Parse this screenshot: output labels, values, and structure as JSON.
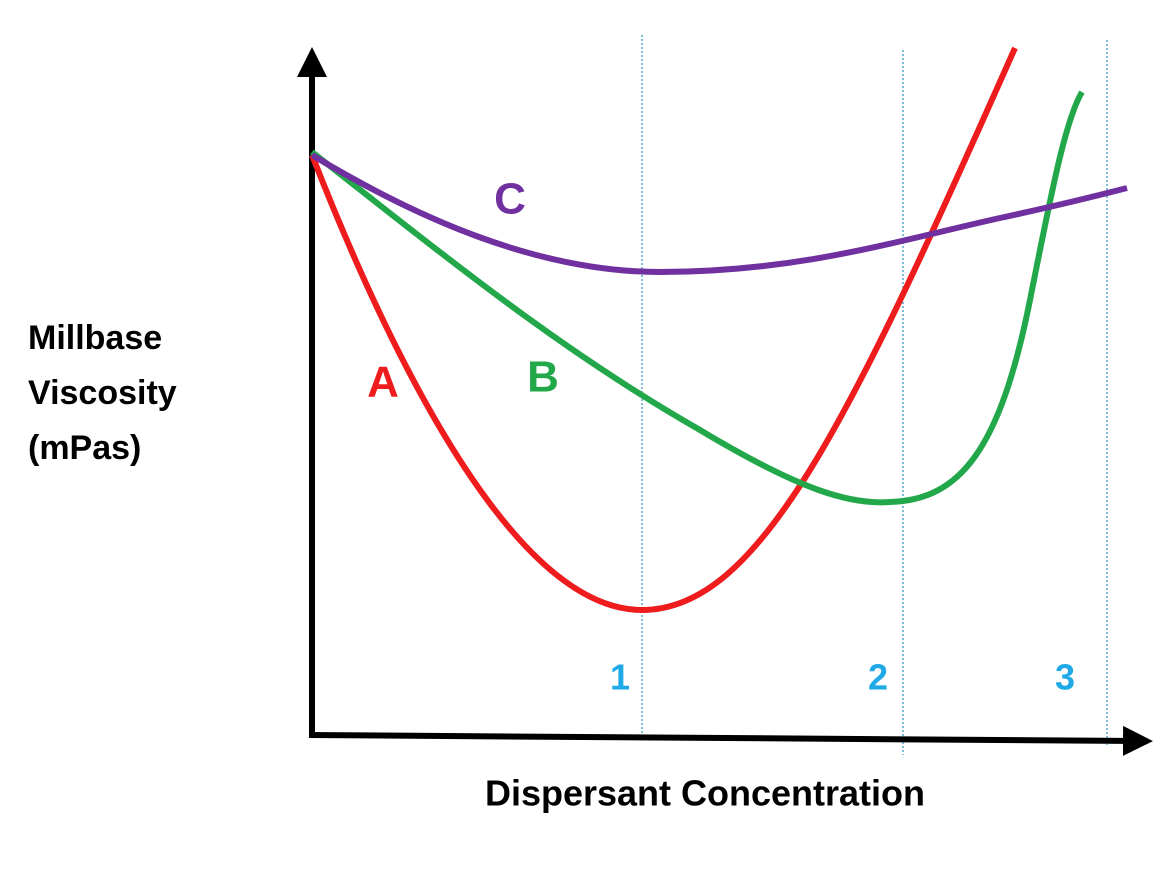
{
  "y_axis_label": [
    "Millbase",
    "Viscosity",
    "(mPas)"
  ],
  "x_axis_label": "Dispersant Concentration",
  "curves": [
    {
      "label": "A"
    },
    {
      "label": "B"
    },
    {
      "label": "C"
    }
  ],
  "markers": [
    "1",
    "2",
    "3"
  ]
}
